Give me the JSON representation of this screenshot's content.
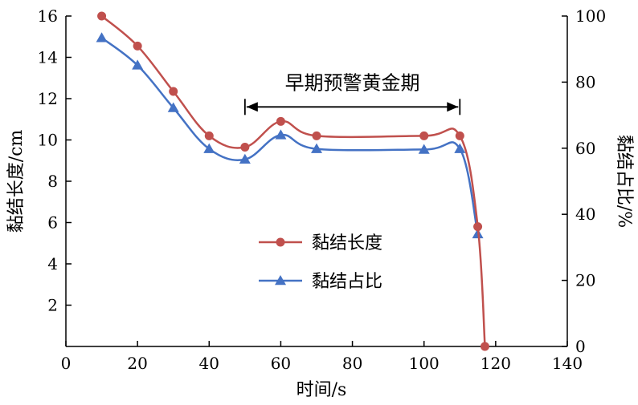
{
  "chart_data": {
    "type": "line",
    "xlabel": "时间/s",
    "ylabel": "黏结长度/cm",
    "y2label": "黏结占比/%",
    "xlim": [
      0,
      140
    ],
    "ylim": [
      0,
      16
    ],
    "y2lim": [
      0,
      100
    ],
    "xticks": [
      "0",
      "20",
      "40",
      "60",
      "80",
      "100",
      "120",
      "140"
    ],
    "yticks": [
      "2",
      "4",
      "6",
      "8",
      "10",
      "12",
      "14",
      "16"
    ],
    "y2ticks": [
      "0",
      "20",
      "40",
      "60",
      "80",
      "100"
    ],
    "grid": false,
    "legend_position": "center-left",
    "series": [
      {
        "name": "黏结长度",
        "axis": "left",
        "color": "#c0504d",
        "marker": "circle",
        "x": [
          10,
          20,
          30,
          40,
          50,
          60,
          70,
          100,
          110,
          115,
          117
        ],
        "y": [
          16.0,
          14.55,
          12.35,
          10.2,
          9.65,
          10.9,
          10.2,
          10.2,
          10.2,
          5.8,
          0.0
        ]
      },
      {
        "name": "黏结占比",
        "axis": "right",
        "color": "#4472c4",
        "marker": "triangle",
        "x": [
          10,
          20,
          30,
          40,
          50,
          60,
          70,
          100,
          110,
          115
        ],
        "y": [
          93.4,
          85.1,
          72.2,
          59.8,
          56.6,
          64.0,
          59.8,
          59.6,
          59.8,
          34.0
        ]
      }
    ],
    "annotation": {
      "text": "早期预警黄金期",
      "x_start": 50,
      "x_end": 110,
      "y": 11.6
    }
  }
}
